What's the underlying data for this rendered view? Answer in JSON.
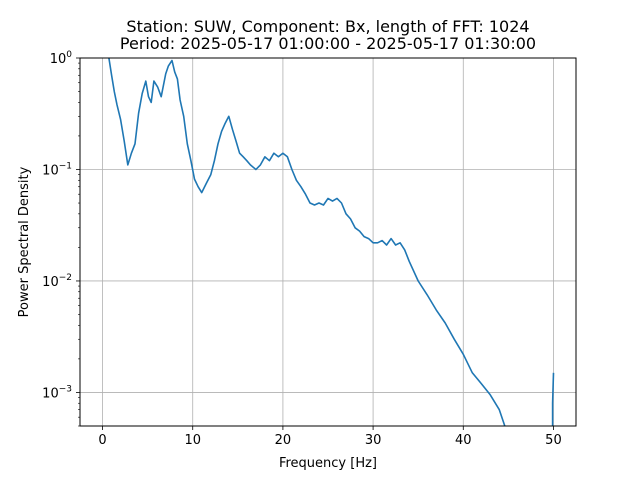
{
  "chart_data": {
    "type": "line",
    "title_line1": "Station: SUW, Component: Bx, length of FFT: 1024",
    "title_line2": "Period: 2025-05-17 01:00:00 - 2025-05-17 01:30:00",
    "xlabel": "Frequency [Hz]",
    "ylabel": "Power Spectral Density",
    "xlim": [
      -2.5,
      52.5
    ],
    "ylim": [
      0.0005,
      1
    ],
    "yscale": "log",
    "grid": true,
    "x_ticks": [
      0,
      10,
      20,
      30,
      40,
      50
    ],
    "x_tick_labels": [
      "0",
      "10",
      "20",
      "30",
      "40",
      "50"
    ],
    "y_ticks": [
      0.001,
      0.01,
      0.1,
      1
    ],
    "y_tick_labels": [
      {
        "base": "10",
        "exp": "−3"
      },
      {
        "base": "10",
        "exp": "−2"
      },
      {
        "base": "10",
        "exp": "−1"
      },
      {
        "base": "10",
        "exp": "0"
      }
    ],
    "series": [
      {
        "color": "#1f77b4",
        "x": [
          0.7,
          1.0,
          1.3,
          1.6,
          2.0,
          2.4,
          2.8,
          3.2,
          3.6,
          4.0,
          4.4,
          4.8,
          5.1,
          5.4,
          5.7,
          6.1,
          6.5,
          7.0,
          7.3,
          7.7,
          8.0,
          8.3,
          8.6,
          9.0,
          9.4,
          9.8,
          10.2,
          10.6,
          11.0,
          11.5,
          12.0,
          12.4,
          12.8,
          13.2,
          13.6,
          14.0,
          14.4,
          14.8,
          15.2,
          15.6,
          16.0,
          16.4,
          17.0,
          17.5,
          18.0,
          18.5,
          19.0,
          19.5,
          20.0,
          20.5,
          21.0,
          21.5,
          22.0,
          22.5,
          23.0,
          23.5,
          24.0,
          24.5,
          25.0,
          25.5,
          26.0,
          26.5,
          27.0,
          27.5,
          28.0,
          28.5,
          29.0,
          29.5,
          30.0,
          30.5,
          31.0,
          31.5,
          32.0,
          32.5,
          33.0,
          33.5,
          34.0,
          35.0,
          36.0,
          37.0,
          38.0,
          39.0,
          40.0,
          41.0,
          42.0,
          43.0,
          44.0,
          44.6
        ],
        "y": [
          1.0,
          0.7,
          0.5,
          0.38,
          0.28,
          0.18,
          0.11,
          0.14,
          0.17,
          0.32,
          0.48,
          0.62,
          0.45,
          0.4,
          0.62,
          0.55,
          0.45,
          0.72,
          0.85,
          0.95,
          0.75,
          0.65,
          0.42,
          0.3,
          0.17,
          0.12,
          0.082,
          0.07,
          0.062,
          0.075,
          0.09,
          0.12,
          0.17,
          0.22,
          0.26,
          0.3,
          0.23,
          0.18,
          0.14,
          0.13,
          0.12,
          0.11,
          0.1,
          0.11,
          0.13,
          0.12,
          0.14,
          0.13,
          0.14,
          0.13,
          0.1,
          0.08,
          0.07,
          0.06,
          0.05,
          0.048,
          0.05,
          0.048,
          0.055,
          0.052,
          0.055,
          0.05,
          0.04,
          0.036,
          0.03,
          0.028,
          0.025,
          0.024,
          0.022,
          0.022,
          0.023,
          0.021,
          0.024,
          0.021,
          0.022,
          0.019,
          0.015,
          0.01,
          0.0075,
          0.0055,
          0.0042,
          0.003,
          0.0022,
          0.0015,
          0.0012,
          0.00095,
          0.0007,
          0.0005
        ]
      },
      {
        "color": "#1f77b4",
        "x": [
          49.9,
          49.9,
          50.0
        ],
        "y": [
          0.0005,
          0.0008,
          0.0015
        ]
      }
    ]
  }
}
